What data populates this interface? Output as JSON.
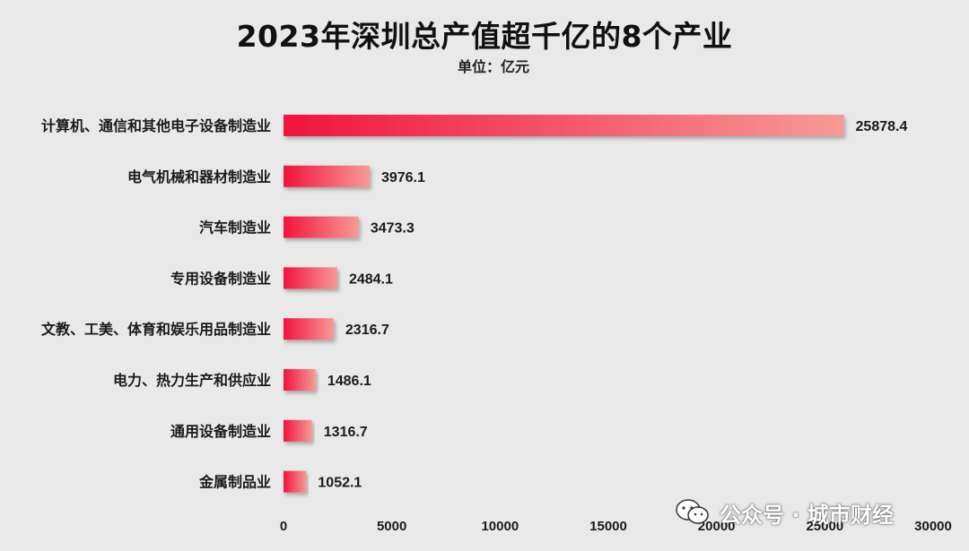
{
  "chart_data": {
    "type": "bar",
    "orientation": "horizontal",
    "title": "2023年深圳总产值超千亿的8个产业",
    "subtitle": "单位：亿元",
    "categories": [
      "计算机、通信和其他电子设备制造业",
      "电气机械和器材制造业",
      "汽车制造业",
      "专用设备制造业",
      "文教、工美、体育和娱乐用品制造业",
      "电力、热力生产和供应业",
      "通用设备制造业",
      "金属制品业"
    ],
    "values": [
      25878.4,
      3976.1,
      3473.3,
      2484.1,
      2316.7,
      1486.1,
      1316.7,
      1052.1
    ],
    "value_labels": [
      "25878.4",
      "3976.1",
      "3473.3",
      "2484.1",
      "2316.7",
      "1486.1",
      "1316.7",
      "1052.1"
    ],
    "xlim": [
      0,
      30000
    ],
    "x_ticks": [
      0,
      5000,
      10000,
      15000,
      20000,
      25000,
      30000
    ],
    "x_tick_labels": [
      "0",
      "5000",
      "10000",
      "15000",
      "20000",
      "25000",
      "30000"
    ],
    "xlabel": "",
    "ylabel": "",
    "grid": false,
    "legend": "none",
    "colors": {
      "bar_start": "#f0143c",
      "bar_end": "#f79a96",
      "background": "#e9e9e9",
      "text": "#1a1a1a"
    }
  },
  "watermark": {
    "icon": "wechat-icon",
    "text": "公众号 · 城市财经"
  }
}
